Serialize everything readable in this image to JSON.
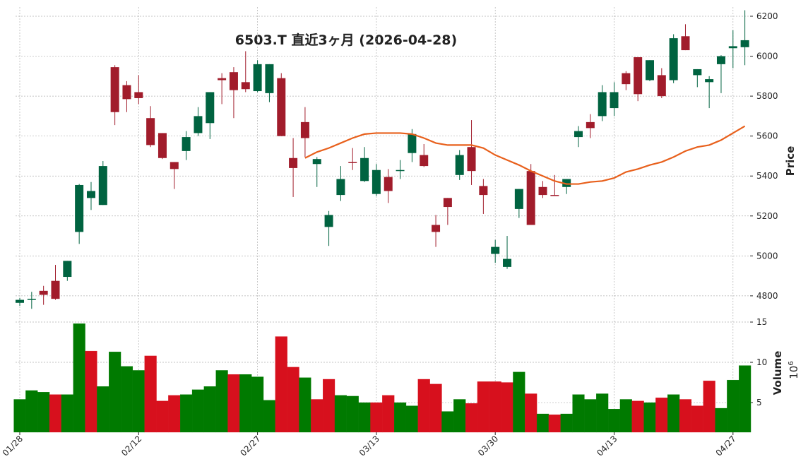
{
  "chart_data": {
    "type": "candlestick",
    "title": "6503.T  直近3ヶ月  (2026-04-28)",
    "ylabel": "Price",
    "categories": [
      "01/28",
      null,
      null,
      null,
      null,
      null,
      null,
      null,
      null,
      null,
      "02/12",
      null,
      null,
      null,
      null,
      null,
      null,
      null,
      null,
      null,
      "02/27",
      null,
      null,
      null,
      null,
      null,
      null,
      null,
      null,
      null,
      "03/13",
      null,
      null,
      null,
      null,
      null,
      null,
      null,
      null,
      null,
      "03/30",
      null,
      null,
      null,
      null,
      null,
      null,
      null,
      null,
      null,
      "04/13",
      null,
      null,
      null,
      null,
      null,
      null,
      null,
      null,
      null,
      "04/27",
      null
    ],
    "open": [
      4765,
      4780,
      4825,
      4875,
      4895,
      5120,
      5290,
      5255,
      5945,
      5855,
      5820,
      5690,
      5615,
      5470,
      5525,
      5615,
      5665,
      5890,
      5920,
      5870,
      5825,
      5815,
      5890,
      5490,
      5670,
      5460,
      5145,
      5305,
      5470,
      5375,
      5310,
      5395,
      5425,
      5515,
      5505,
      5155,
      5290,
      5405,
      5545,
      5350,
      5010,
      4945,
      5235,
      5425,
      5345,
      5305,
      5345,
      5595,
      5670,
      5700,
      5740,
      5915,
      5995,
      5880,
      5905,
      5880,
      6100,
      5905,
      5870,
      5960,
      6040,
      6045
    ],
    "high": [
      4790,
      4820,
      4850,
      4955,
      4975,
      5360,
      5370,
      5475,
      5955,
      5875,
      5905,
      5750,
      5615,
      5470,
      5625,
      5745,
      5820,
      5915,
      5945,
      6025,
      5980,
      5960,
      5915,
      5590,
      5745,
      5495,
      5225,
      5450,
      5540,
      5545,
      5460,
      5435,
      5480,
      5635,
      5560,
      5205,
      5290,
      5530,
      5680,
      5385,
      5080,
      5100,
      5335,
      5460,
      5375,
      5405,
      5385,
      5650,
      5710,
      5855,
      5870,
      5925,
      5995,
      5980,
      5940,
      6110,
      6160,
      5935,
      5900,
      6005,
      6130,
      6230
    ],
    "low": [
      4750,
      4735,
      4755,
      4780,
      4875,
      5060,
      5230,
      5255,
      5655,
      5720,
      5760,
      5545,
      5485,
      5335,
      5480,
      5600,
      5585,
      5760,
      5690,
      5820,
      5820,
      5770,
      5600,
      5295,
      5495,
      5345,
      5050,
      5275,
      5430,
      5370,
      5300,
      5265,
      5385,
      5470,
      5445,
      5045,
      5155,
      5380,
      5355,
      5210,
      4965,
      4935,
      5190,
      5155,
      5290,
      5300,
      5310,
      5545,
      5590,
      5675,
      5700,
      5830,
      5775,
      5875,
      5790,
      5865,
      6030,
      5845,
      5740,
      5815,
      5940,
      5955
    ],
    "close": [
      4780,
      4785,
      4805,
      4785,
      4975,
      5355,
      5325,
      5450,
      5720,
      5785,
      5790,
      5555,
      5490,
      5435,
      5595,
      5700,
      5820,
      5880,
      5830,
      5835,
      5960,
      5960,
      5600,
      5440,
      5590,
      5485,
      5205,
      5385,
      5465,
      5490,
      5430,
      5325,
      5430,
      5610,
      5450,
      5120,
      5245,
      5505,
      5425,
      5305,
      5045,
      4985,
      5335,
      5155,
      5305,
      5300,
      5385,
      5625,
      5640,
      5820,
      5820,
      5860,
      5810,
      5980,
      5800,
      6090,
      6030,
      5935,
      5885,
      6000,
      6050,
      6080
    ],
    "up_color": "#006340",
    "down_color": "#a11c2b",
    "ylim": [
      4690,
      6246
    ],
    "yticks": [
      4800,
      5000,
      5200,
      5400,
      5600,
      5800,
      6000,
      6200
    ],
    "grid": true,
    "ma": {
      "color": "#e8601c",
      "values": [
        null,
        null,
        null,
        null,
        null,
        null,
        null,
        null,
        null,
        null,
        null,
        null,
        null,
        null,
        null,
        null,
        null,
        null,
        null,
        null,
        null,
        null,
        null,
        null,
        5490,
        5520,
        5540,
        5565,
        5590,
        5610,
        5615,
        5615,
        5615,
        5610,
        5590,
        5565,
        5555,
        5555,
        5555,
        5540,
        5505,
        5480,
        5455,
        5425,
        5400,
        5375,
        5360,
        5360,
        5370,
        5375,
        5390,
        5420,
        5435,
        5455,
        5470,
        5495,
        5525,
        5545,
        5555,
        5580,
        5615,
        5650
      ]
    },
    "volume": {
      "ylabel": "Volume",
      "offset_base": "10",
      "offset_exponent": "6",
      "up_color": "#007a00",
      "down_color": "#d7101d",
      "ylim": [
        1.32,
        15.09
      ],
      "yticks": [
        5,
        10,
        15
      ],
      "values": [
        5.4,
        6.5,
        6.3,
        6.0,
        6.0,
        14.8,
        11.4,
        7.0,
        11.3,
        9.5,
        9.0,
        10.8,
        5.2,
        5.9,
        6.0,
        6.6,
        7.0,
        9.0,
        8.5,
        8.5,
        8.2,
        5.3,
        13.2,
        9.4,
        8.1,
        5.4,
        7.9,
        5.9,
        5.8,
        5.0,
        5.0,
        5.9,
        5.0,
        4.6,
        7.9,
        7.3,
        3.9,
        5.4,
        4.9,
        7.6,
        7.6,
        7.5,
        8.8,
        6.1,
        3.6,
        3.5,
        3.6,
        6.0,
        5.4,
        6.1,
        4.2,
        5.4,
        5.2,
        5.0,
        5.6,
        6.0,
        5.4,
        4.6,
        7.7,
        4.3,
        7.8,
        9.6
      ]
    }
  }
}
